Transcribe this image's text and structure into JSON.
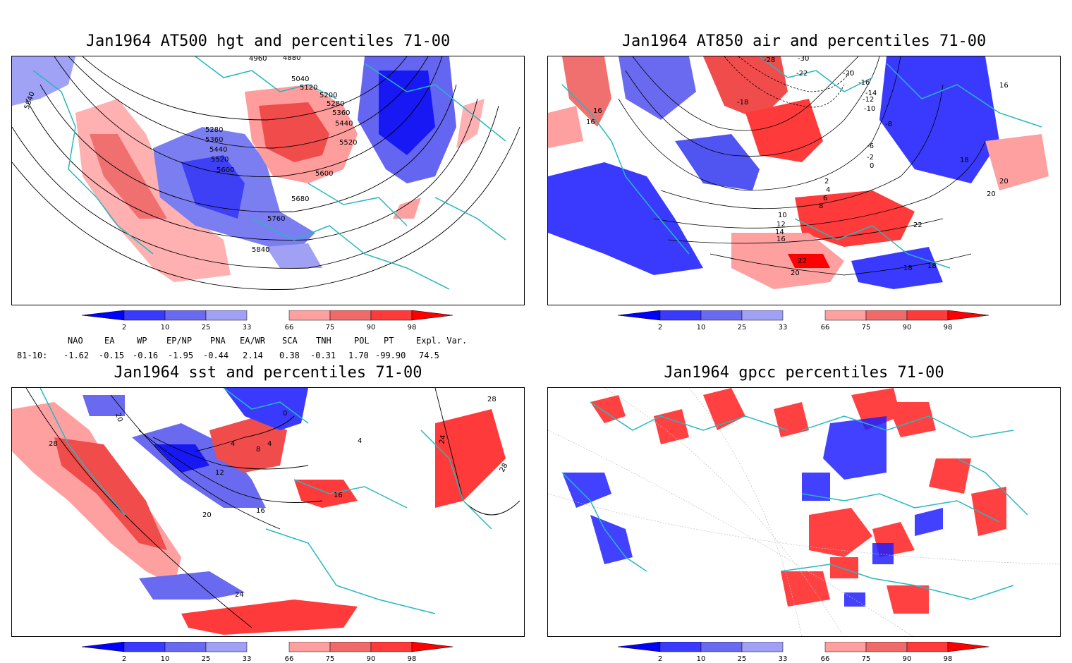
{
  "panels": [
    {
      "id": "p1",
      "title": "Jan1964 AT500 hgt and percentiles 71-00",
      "contour_labels": [
        "4960",
        "4880",
        "5040",
        "5120",
        "5200",
        "5280",
        "5360",
        "5440",
        "5520",
        "5600",
        "5680",
        "5760",
        "5840",
        "5280",
        "5360",
        "5440",
        "5520",
        "5600",
        "5840"
      ]
    },
    {
      "id": "p2",
      "title": "Jan1964 AT850 air and percentiles 71-00",
      "contour_labels": [
        "-28",
        "-30",
        "-22",
        "-20",
        "-16",
        "-14",
        "-12",
        "-10",
        "-18",
        "-8",
        "-6",
        "-2",
        "0",
        "2",
        "4",
        "6",
        "8",
        "10",
        "12",
        "14",
        "16",
        "16",
        "16",
        "16",
        "18",
        "20",
        "20",
        "22",
        "22",
        "20",
        "18",
        "18"
      ]
    },
    {
      "id": "p3",
      "title": "Jan1964 sst and percentiles 71-00",
      "contour_labels": [
        "20",
        "28",
        "0",
        "4",
        "4",
        "8",
        "12",
        "16",
        "16",
        "20",
        "24",
        "24",
        "28",
        "28",
        "4"
      ]
    },
    {
      "id": "p4",
      "title": "Jan1964 gpcc percentiles 71-00",
      "contour_labels": []
    }
  ],
  "colorbar": {
    "labels": [
      "2",
      "10",
      "25",
      "33",
      "66",
      "75",
      "90",
      "98"
    ],
    "colors": [
      "#0000ff",
      "#3a3aff",
      "#6a6af0",
      "#a0a0f5",
      "#ffffff",
      "#ffa0a0",
      "#f06a6a",
      "#ff3a3a",
      "#ff0000"
    ]
  },
  "indices": {
    "headers": [
      "NAO",
      "EA",
      "WP",
      "EP/NP",
      "PNA",
      "EA/WR",
      "SCA",
      "TNH",
      "POL",
      "PT",
      "Expl. Var."
    ],
    "row_label": "81-10:",
    "values": [
      "-1.62",
      "-0.15",
      "-0.16",
      "-1.95",
      "-0.44",
      "2.14",
      "0.38",
      "-0.31",
      "1.70",
      "-99.90",
      "74.5"
    ]
  }
}
